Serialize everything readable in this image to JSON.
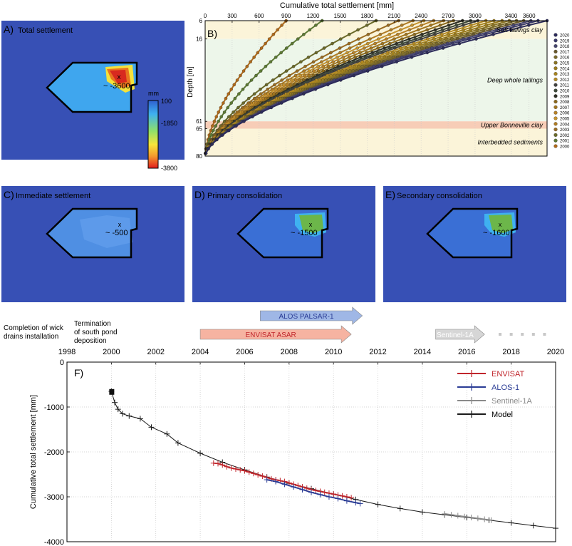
{
  "map_panels": [
    {
      "id": "A",
      "label": "A)",
      "title": "Total settlement",
      "value": "~ -3600",
      "marker": "x",
      "fill": "#d8291f"
    },
    {
      "id": "C",
      "label": "C)",
      "title": "Immediate settlement",
      "value": "~ -500",
      "marker": "x",
      "fill": "#4f8fe3"
    },
    {
      "id": "D",
      "label": "D)",
      "title": "Primary consolidation",
      "value": "~ -1500",
      "marker": "x",
      "fill": "#6cb64a"
    },
    {
      "id": "E",
      "label": "E)",
      "title": "Secondary consolidation",
      "value": "~ -1600",
      "marker": "x",
      "fill": "#6cb64a"
    }
  ],
  "colorbar": {
    "unit": "mm",
    "ticks": [
      "100",
      "-1850",
      "-3800"
    ],
    "colors": [
      "#2f5fcf",
      "#3fb1f0",
      "#8fe06a",
      "#f6e53b",
      "#f39a2e",
      "#e11d1d"
    ]
  },
  "background_color": "#3750b5",
  "chart_data": [
    {
      "id": "B",
      "label": "B)",
      "type": "line",
      "title": "Cumulative total settlement [mm]",
      "xlabel": "Cumulative total settlement [mm]",
      "ylabel": "Depth [m]",
      "x_ticks": [
        "0",
        "300",
        "600",
        "900",
        "1200",
        "1500",
        "1800",
        "2100",
        "2400",
        "2700",
        "3000",
        "3400",
        "3600"
      ],
      "xlim": [
        0,
        3800
      ],
      "y_ticks": [
        "6",
        "16",
        "61",
        "65",
        "80"
      ],
      "ylim": [
        6,
        80
      ],
      "zones": [
        {
          "name": "Soft tailings clay",
          "from": 6,
          "to": 16,
          "color": "#fbf4d9"
        },
        {
          "name": "Deep whole tailings",
          "from": 16,
          "to": 61,
          "color": "#edf6ea"
        },
        {
          "name": "Upper Bonneville clay",
          "from": 61,
          "to": 65,
          "color": "#f7cdb7"
        },
        {
          "name": "Interbedded sediments",
          "from": 65,
          "to": 80,
          "color": "#fbf4d9"
        }
      ],
      "legend_placement": "right",
      "series": [
        {
          "name": "2020",
          "surface": 3800,
          "color": "#2c2b5a"
        },
        {
          "name": "2019",
          "surface": 3700,
          "color": "#3b3a6c"
        },
        {
          "name": "2018",
          "surface": 3620,
          "color": "#47466f"
        },
        {
          "name": "2017",
          "surface": 3540,
          "color": "#6a5a2c"
        },
        {
          "name": "2016",
          "surface": 3460,
          "color": "#7a6a2a"
        },
        {
          "name": "2015",
          "surface": 3380,
          "color": "#8a7426"
        },
        {
          "name": "2014",
          "surface": 3300,
          "color": "#9b7c1e"
        },
        {
          "name": "2013",
          "surface": 3210,
          "color": "#a7841f"
        },
        {
          "name": "2012",
          "surface": 3120,
          "color": "#b58a22"
        },
        {
          "name": "2011",
          "surface": 3030,
          "color": "#434241"
        },
        {
          "name": "2010",
          "surface": 2950,
          "color": "#3f4a3a"
        },
        {
          "name": "2009",
          "surface": 2860,
          "color": "#2f3026"
        },
        {
          "name": "2008",
          "surface": 2760,
          "color": "#8d6a1c"
        },
        {
          "name": "2007",
          "surface": 2650,
          "color": "#a3761e"
        },
        {
          "name": "2006",
          "surface": 2540,
          "color": "#b88228"
        },
        {
          "name": "2005",
          "surface": 2430,
          "color": "#c6932e"
        },
        {
          "name": "2004",
          "surface": 2310,
          "color": "#b07c24"
        },
        {
          "name": "2003",
          "surface": 2150,
          "color": "#9a6c22"
        },
        {
          "name": "2002",
          "surface": 1900,
          "color": "#6b6a2a"
        },
        {
          "name": "2001",
          "surface": 1300,
          "color": "#5d7a34"
        },
        {
          "name": "2000",
          "surface": 900,
          "color": "#b06a1a"
        }
      ]
    },
    {
      "id": "F",
      "label": "F)",
      "type": "line",
      "xlabel": "",
      "ylabel": "Cumulative total settlement [mm]",
      "x_ticks": [
        "1998",
        "2000",
        "2002",
        "2004",
        "2006",
        "2008",
        "2010",
        "2012",
        "2014",
        "2016",
        "2018",
        "2020"
      ],
      "xlim": [
        1998,
        2020
      ],
      "y_ticks": [
        "0",
        "-1000",
        "-2000",
        "-3000",
        "-4000"
      ],
      "ylim": [
        -4000,
        0
      ],
      "grid": true,
      "legend_placement": "top-right",
      "series": [
        {
          "name": "ENVISAT",
          "color": "#c0262c",
          "x": [
            2004.6,
            2004.8,
            2005.0,
            2005.2,
            2005.4,
            2005.6,
            2005.8,
            2006.0,
            2006.2,
            2006.4,
            2006.6,
            2006.8,
            2007.0,
            2007.2,
            2007.4,
            2007.6,
            2007.8,
            2008.0,
            2008.2,
            2008.4,
            2008.6,
            2008.8,
            2009.0,
            2009.2,
            2009.4,
            2009.6,
            2009.8,
            2010.0,
            2010.2,
            2010.4,
            2010.6,
            2010.8
          ],
          "y": [
            -2250,
            -2260,
            -2290,
            -2330,
            -2360,
            -2380,
            -2400,
            -2420,
            -2450,
            -2480,
            -2510,
            -2540,
            -2570,
            -2600,
            -2620,
            -2640,
            -2660,
            -2690,
            -2720,
            -2750,
            -2780,
            -2810,
            -2840,
            -2860,
            -2880,
            -2900,
            -2920,
            -2940,
            -2960,
            -2980,
            -3000,
            -3020
          ]
        },
        {
          "name": "ALOS-1",
          "color": "#2a3c95",
          "x": [
            2007.0,
            2007.4,
            2007.8,
            2008.2,
            2008.6,
            2009.0,
            2009.4,
            2009.8,
            2010.2,
            2010.6,
            2011.0,
            2011.2
          ],
          "y": [
            -2620,
            -2660,
            -2720,
            -2780,
            -2840,
            -2900,
            -2950,
            -3000,
            -3040,
            -3090,
            -3130,
            -3150
          ]
        },
        {
          "name": "Sentinel-1A",
          "color": "#8a8a8a",
          "x": [
            2015.0,
            2015.3,
            2015.6,
            2015.9,
            2016.2,
            2016.5,
            2016.8,
            2017.1
          ],
          "y": [
            -3380,
            -3400,
            -3420,
            -3440,
            -3460,
            -3480,
            -3500,
            -3520
          ]
        },
        {
          "name": "Model",
          "color": "#1a1a1a",
          "x": [
            2000.0,
            2000.15,
            2000.3,
            2000.5,
            2000.8,
            2001.3,
            2001.8,
            2002.5,
            2003.0,
            2004.0,
            2005.0,
            2006.0,
            2007.0,
            2008.0,
            2009.0,
            2010.0,
            2011.0,
            2012.0,
            2013.0,
            2014.0,
            2015.0,
            2016.0,
            2017.0,
            2018.0,
            2019.0,
            2020.0
          ],
          "y": [
            -650,
            -900,
            -1050,
            -1150,
            -1200,
            -1260,
            -1450,
            -1600,
            -1800,
            -2030,
            -2230,
            -2400,
            -2560,
            -2700,
            -2820,
            -2940,
            -3060,
            -3170,
            -3260,
            -3340,
            -3400,
            -3460,
            -3520,
            -3580,
            -3640,
            -3700
          ]
        }
      ],
      "legend": [
        "ENVISAT",
        "ALOS-1",
        "Sentinel-1A",
        "Model"
      ],
      "annotations": [
        {
          "text": "Completion of wick drains installation",
          "lines": [
            "Completion of wick",
            "drains installation"
          ]
        },
        {
          "text": "Termination of south pond deposition",
          "lines": [
            "Termination",
            "of south pond",
            "deposition"
          ]
        }
      ],
      "missions": [
        {
          "name": "ALOS PALSAR-1",
          "start": 2006.7,
          "end": 2011.3,
          "color": "#9fb7e6",
          "text_color": "#2a3c95"
        },
        {
          "name": "ENVISAT ASAR",
          "start": 2004.0,
          "end": 2010.8,
          "color": "#f6b3a1",
          "text_color": "#c0262c"
        },
        {
          "name": "Sentinel-1A",
          "start": 2014.6,
          "end": 2016.8,
          "color": "#d6d6d6",
          "text_color": "#ffffff"
        }
      ]
    }
  ]
}
